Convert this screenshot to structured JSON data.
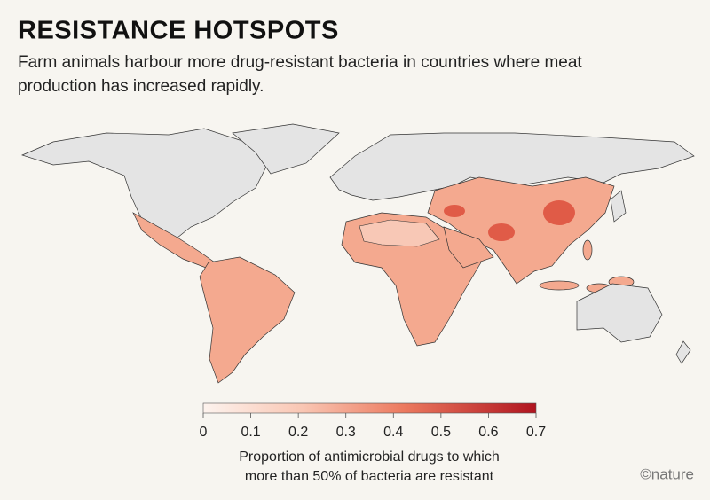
{
  "header": {
    "title": "RESISTANCE HOTSPOTS",
    "subtitle_lines": [
      "Farm animals harbour more drug-resistant bacteria in countries where meat",
      "production has increased rapidly."
    ]
  },
  "legend": {
    "lim": [
      0,
      0.7
    ],
    "ticks": [
      0,
      0.1,
      0.2,
      0.3,
      0.4,
      0.5,
      0.6,
      0.7
    ],
    "label_lines": [
      "Proportion of antimicrobial drugs to which",
      "more than 50% of bacteria are resistant"
    ]
  },
  "credit": "©nature"
}
